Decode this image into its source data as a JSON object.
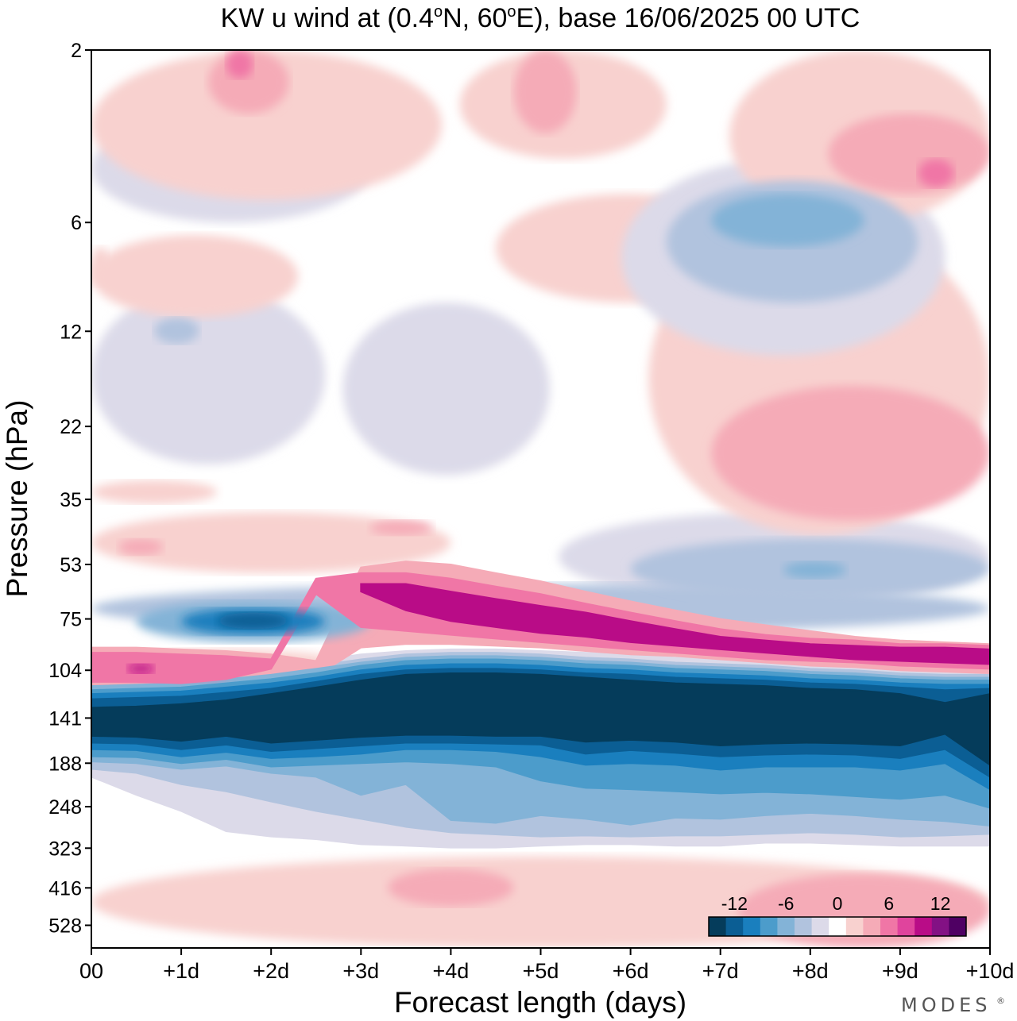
{
  "chart_data": {
    "type": "heatmap",
    "title": {
      "prefix": "KW u wind at (0.4",
      "lat_unit": "o",
      "mid": "N, 60",
      "lon_unit": "o",
      "suffix": "E),  base 16/06/2025  00 UTC"
    },
    "xlabel": "Forecast length (days)",
    "ylabel": "Pressure (hPa)",
    "x_ticks": [
      "00",
      "+1d",
      "+2d",
      "+3d",
      "+4d",
      "+5d",
      "+6d",
      "+7d",
      "+8d",
      "+9d",
      "+10d"
    ],
    "x_days": [
      0,
      1,
      2,
      3,
      4,
      5,
      6,
      7,
      8,
      9,
      10
    ],
    "x_range_days": [
      0,
      10
    ],
    "y_ticks": [
      2,
      6,
      12,
      22,
      35,
      53,
      75,
      104,
      141,
      188,
      248,
      323,
      416,
      528
    ],
    "y_range_hpa": [
      2,
      610
    ],
    "y_scale": "log, inverted",
    "colorbar": {
      "placement": "bottom-right",
      "tick_labels": [
        "-12",
        "-6",
        "0",
        "6",
        "12"
      ],
      "tick_values": [
        -12,
        -6,
        0,
        6,
        12
      ],
      "levels": [
        -14,
        -12,
        -10,
        -8,
        -6,
        -4,
        -2,
        0,
        2,
        4,
        6,
        8,
        10,
        12,
        14
      ],
      "colors": [
        "#053c5b",
        "#0b5e94",
        "#1a7fbe",
        "#4c9ccb",
        "#83b3d7",
        "#b1c3de",
        "#dcdae9",
        "#ffffff",
        "#f8d1cf",
        "#f5abb7",
        "#f076a6",
        "#e0449d",
        "#b90c87",
        "#831184",
        "#4f0063"
      ]
    },
    "bands": [
      {
        "value": -15,
        "day": [
          0,
          0.5,
          1,
          1.5,
          2,
          2.5,
          3,
          3.5,
          4,
          4.5,
          5,
          5.5,
          6,
          6.5,
          7,
          7.5,
          8,
          8.5,
          9,
          9.5,
          10
        ],
        "p_top": [
          132,
          131,
          129,
          126,
          121,
          116,
          111,
          107,
          106,
          106,
          107,
          109,
          111,
          113,
          114,
          115,
          117,
          118,
          121,
          128,
          121
        ],
        "p_bot": [
          158,
          159,
          163,
          158,
          165,
          162,
          159,
          157,
          157,
          158,
          158,
          164,
          162,
          164,
          168,
          166,
          165,
          166,
          168,
          156,
          190
        ]
      },
      {
        "value": -12,
        "day": [
          0,
          0.5,
          1,
          1.5,
          2,
          2.5,
          3,
          3.5,
          4,
          4.5,
          5,
          5.5,
          6,
          6.5,
          7,
          7.5,
          8,
          8.5,
          9,
          9.5,
          10
        ],
        "p_top": [
          125,
          124,
          123,
          120,
          117,
          112,
          107,
          104,
          103,
          103,
          104,
          106,
          107,
          109,
          110,
          111,
          113,
          114,
          116,
          118,
          117
        ],
        "p_bot": [
          165,
          166,
          172,
          167,
          174,
          171,
          168,
          165,
          165,
          166,
          167,
          177,
          173,
          176,
          180,
          178,
          177,
          178,
          182,
          172,
          205
        ]
      },
      {
        "value": -10,
        "day": [
          0,
          0.5,
          1,
          1.5,
          2,
          2.5,
          3,
          3.5,
          4,
          4.5,
          5,
          5.5,
          6,
          6.5,
          7,
          7.5,
          8,
          8.5,
          9,
          9.5,
          10
        ],
        "p_top": [
          121,
          120,
          119,
          116,
          113,
          109,
          104,
          101,
          100,
          100,
          101,
          103,
          104,
          106,
          107,
          108,
          110,
          111,
          113,
          114,
          114
        ],
        "p_bot": [
          172,
          173,
          180,
          175,
          182,
          180,
          177,
          172,
          172,
          174,
          180,
          190,
          188,
          190,
          196,
          192,
          192,
          192,
          196,
          188,
          222
        ]
      },
      {
        "value": -8,
        "day": [
          0,
          0.5,
          1,
          1.5,
          2,
          2.5,
          3,
          3.5,
          4,
          4.5,
          5,
          5.5,
          6,
          6.5,
          7,
          7.5,
          8,
          8.5,
          9,
          9.5,
          10
        ],
        "p_top": [
          118,
          117,
          116,
          113,
          110,
          106,
          101,
          98,
          97,
          97,
          98,
          100,
          101,
          103,
          104,
          105,
          107,
          108,
          110,
          111,
          111
        ],
        "p_bot": [
          180,
          181,
          188,
          183,
          192,
          190,
          188,
          186,
          188,
          192,
          210,
          220,
          222,
          225,
          228,
          226,
          228,
          232,
          236,
          230,
          250
        ]
      },
      {
        "value": -6,
        "day": [
          0,
          0.5,
          1,
          1.5,
          2,
          2.5,
          3,
          3.5,
          4,
          4.5,
          5,
          5.5,
          6,
          6.5,
          7,
          7.5,
          8,
          8.5,
          9,
          9.5,
          10
        ],
        "p_top": [
          115,
          114,
          113,
          110,
          107,
          103,
          99,
          96,
          95,
          95,
          96,
          98,
          99,
          101,
          102,
          103,
          105,
          106,
          108,
          109,
          109
        ],
        "p_bot": [
          186,
          188,
          195,
          191,
          200,
          205,
          230,
          215,
          270,
          275,
          262,
          268,
          278,
          266,
          268,
          262,
          258,
          262,
          268,
          272,
          280
        ]
      },
      {
        "value": -4,
        "day": [
          0,
          0.5,
          1,
          1.5,
          2,
          2.5,
          3,
          3.5,
          4,
          4.5,
          5,
          5.5,
          6,
          6.5,
          7,
          7.5,
          8,
          8.5,
          9,
          9.5,
          10
        ],
        "p_top": [
          113,
          112,
          111,
          108,
          105,
          101,
          97,
          94,
          93,
          93,
          94,
          96,
          97,
          99,
          100,
          101,
          103,
          104,
          106,
          107,
          107
        ],
        "p_bot": [
          195,
          200,
          215,
          225,
          240,
          255,
          268,
          282,
          292,
          296,
          300,
          298,
          300,
          298,
          298,
          295,
          292,
          295,
          300,
          298,
          295
        ]
      },
      {
        "value": -2,
        "day": [
          0,
          0.5,
          1,
          1.5,
          2,
          2.5,
          3,
          3.5,
          4,
          4.5,
          5,
          5.5,
          6,
          6.5,
          7,
          7.5,
          8,
          8.5,
          9,
          9.5,
          10
        ],
        "p_top": [
          110,
          109,
          108,
          105,
          102,
          98,
          94,
          92,
          91,
          91,
          92,
          93,
          94,
          96,
          97,
          98,
          100,
          101,
          103,
          104,
          104
        ],
        "p_bot": [
          205,
          230,
          255,
          290,
          300,
          305,
          315,
          318,
          322,
          322,
          318,
          315,
          315,
          318,
          318,
          312,
          312,
          315,
          318,
          318,
          318
        ]
      },
      {
        "value": 4,
        "day": [
          0,
          0.5,
          1,
          1.5,
          2,
          2.5,
          3,
          3.5,
          4,
          4.5,
          5,
          5.5,
          6,
          6.5,
          7,
          7.5,
          8,
          8.5,
          9,
          9.5,
          10
        ],
        "p_top": [
          90,
          90,
          91,
          92,
          94,
          98,
          54,
          52,
          53,
          56,
          59,
          63,
          67,
          71,
          75,
          78,
          81,
          84,
          86,
          87,
          88
        ],
        "p_bot": [
          116,
          116,
          117,
          116,
          112,
          108,
          90,
          88,
          88,
          89,
          90,
          92,
          94,
          95,
          97,
          99,
          101,
          102,
          104,
          105,
          106
        ]
      },
      {
        "value": 7,
        "day": [
          0,
          0.5,
          1,
          1.5,
          2,
          2.5,
          3,
          3.5,
          4,
          4.5,
          5,
          5.5,
          6,
          6.5,
          7,
          7.5,
          8,
          8.5,
          9,
          9.5,
          10
        ],
        "p_top": [
          93,
          93,
          94,
          95,
          97,
          58,
          56,
          56,
          58,
          61,
          64,
          68,
          72,
          76,
          80,
          83,
          85,
          86,
          88,
          88,
          89
        ],
        "p_bot": [
          112,
          112,
          113,
          110,
          103,
          64,
          79,
          81,
          83,
          85,
          87,
          89,
          91,
          93,
          95,
          97,
          98,
          99,
          101,
          102,
          103
        ]
      },
      {
        "value": 10,
        "day": [
          3,
          3.5,
          4,
          4.5,
          5,
          5.5,
          6,
          6.5,
          7,
          7.5,
          8,
          8.5,
          9,
          9.5,
          10
        ],
        "p_top": [
          60,
          60,
          63,
          66,
          69,
          72,
          76,
          80,
          84,
          86,
          88,
          89,
          90,
          90,
          91
        ],
        "p_bot": [
          63,
          71,
          76,
          79,
          82,
          84,
          87,
          89,
          91,
          93,
          95,
          97,
          98,
          99,
          100
        ]
      }
    ],
    "blobs": [
      {
        "value": -4,
        "x_day": [
          0.0,
          10.0
        ],
        "p_hpa": [
          60,
          82
        ]
      },
      {
        "value": -6,
        "x_day": [
          0.5,
          3.1
        ],
        "p_hpa": [
          67,
          87
        ]
      },
      {
        "value": -10,
        "x_day": [
          1.0,
          2.6
        ],
        "p_hpa": [
          70,
          83
        ]
      },
      {
        "value": -12,
        "x_day": [
          1.4,
          2.2
        ],
        "p_hpa": [
          72,
          80
        ]
      },
      {
        "value": 2,
        "x_day": [
          0.0,
          3.0
        ],
        "p_hpa": [
          91,
          119
        ]
      },
      {
        "value": 7,
        "x_day": [
          0.1,
          1.6
        ],
        "p_hpa": [
          95,
          112
        ]
      },
      {
        "value": 10,
        "x_day": [
          0.4,
          0.7
        ],
        "p_hpa": [
          100,
          106
        ]
      },
      {
        "value": -2,
        "x_day": [
          5.2,
          10.0
        ],
        "p_hpa": [
          38,
          67
        ]
      },
      {
        "value": -4,
        "x_day": [
          6.0,
          10.0
        ],
        "p_hpa": [
          45,
          66
        ]
      },
      {
        "value": -6,
        "x_day": [
          7.7,
          8.4
        ],
        "p_hpa": [
          52,
          58
        ]
      },
      {
        "value": 2,
        "x_day": [
          0.0,
          4.0
        ],
        "p_hpa": [
          38,
          56
        ]
      },
      {
        "value": 4,
        "x_day": [
          0.3,
          0.8
        ],
        "p_hpa": [
          45,
          50
        ]
      },
      {
        "value": 4,
        "x_day": [
          3.1,
          3.8
        ],
        "p_hpa": [
          40,
          44
        ]
      },
      {
        "value": 2,
        "x_day": [
          0.0,
          1.4
        ],
        "p_hpa": [
          31,
          36
        ]
      },
      {
        "value": 2,
        "x_day": [
          6.2,
          10.0
        ],
        "p_hpa": [
          6,
          44
        ]
      },
      {
        "value": 4,
        "x_day": [
          6.9,
          10.0
        ],
        "p_hpa": [
          17,
          40
        ]
      },
      {
        "value": 2,
        "x_day": [
          4.5,
          7.4
        ],
        "p_hpa": [
          5,
          10
        ]
      },
      {
        "value": -2,
        "x_day": [
          5.9,
          9.5
        ],
        "p_hpa": [
          4,
          14
        ]
      },
      {
        "value": -4,
        "x_day": [
          6.4,
          9.2
        ],
        "p_hpa": [
          4.6,
          10
        ]
      },
      {
        "value": -6,
        "x_day": [
          6.9,
          8.6
        ],
        "p_hpa": [
          5.0,
          7.0
        ]
      },
      {
        "value": -2,
        "x_day": [
          2.8,
          5.1
        ],
        "p_hpa": [
          10,
          30
        ]
      },
      {
        "value": -2,
        "x_day": [
          0.0,
          2.6
        ],
        "p_hpa": [
          9,
          28
        ]
      },
      {
        "value": -4,
        "x_day": [
          0.7,
          1.2
        ],
        "p_hpa": [
          11,
          13
        ]
      },
      {
        "value": -2,
        "x_day": [
          0.0,
          3.1
        ],
        "p_hpa": [
          3.0,
          6.0
        ]
      },
      {
        "value": 2,
        "x_day": [
          0.0,
          2.3
        ],
        "p_hpa": [
          6.5,
          11
        ]
      },
      {
        "value": 2,
        "x_day": [
          0.0,
          0.2
        ],
        "p_hpa": [
          7,
          9
        ]
      },
      {
        "value": 2,
        "x_day": [
          0.0,
          3.9
        ],
        "p_hpa": [
          2,
          5.2
        ]
      },
      {
        "value": 4,
        "x_day": [
          1.3,
          2.2
        ],
        "p_hpa": [
          2,
          3.0
        ]
      },
      {
        "value": 7,
        "x_day": [
          1.5,
          1.8
        ],
        "p_hpa": [
          2,
          2.4
        ]
      },
      {
        "value": 2,
        "x_day": [
          4.1,
          6.4
        ],
        "p_hpa": [
          2,
          4.0
        ]
      },
      {
        "value": 4,
        "x_day": [
          4.7,
          5.4
        ],
        "p_hpa": [
          2,
          3.4
        ]
      },
      {
        "value": 2,
        "x_day": [
          7.1,
          10.0
        ],
        "p_hpa": [
          2,
          6.0
        ]
      },
      {
        "value": 4,
        "x_day": [
          8.2,
          10.0
        ],
        "p_hpa": [
          3.0,
          5.0
        ]
      },
      {
        "value": 7,
        "x_day": [
          9.2,
          9.6
        ],
        "p_hpa": [
          4.0,
          4.8
        ]
      },
      {
        "value": 2,
        "x_day": [
          0.0,
          10.0
        ],
        "p_hpa": [
          340,
          610
        ]
      },
      {
        "value": 4,
        "x_day": [
          3.3,
          4.7
        ],
        "p_hpa": [
          368,
          468
        ]
      },
      {
        "value": 4,
        "x_day": [
          7.2,
          10.0
        ],
        "p_hpa": [
          380,
          610
        ]
      }
    ]
  },
  "branding": {
    "label": "MODES",
    "mark": "®"
  }
}
